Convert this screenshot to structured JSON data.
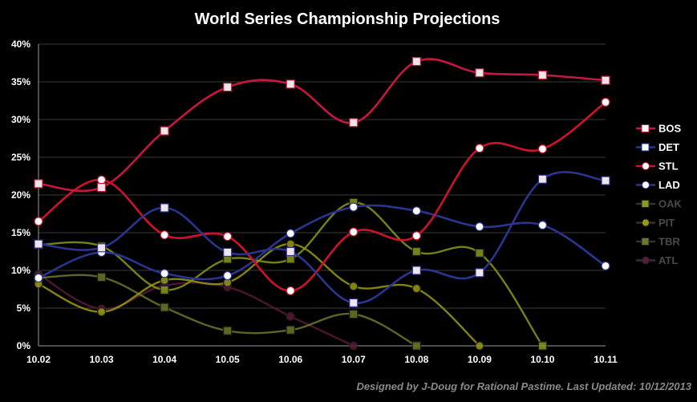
{
  "chart_data": {
    "type": "line",
    "title": "World Series Championship Projections",
    "x": [
      "10.02",
      "10.03",
      "10.04",
      "10.05",
      "10.06",
      "10.07",
      "10.08",
      "10.09",
      "10.10",
      "10.11"
    ],
    "y_ticks": [
      "0%",
      "5%",
      "10%",
      "15%",
      "20%",
      "25%",
      "30%",
      "35%",
      "40%"
    ],
    "ylim": [
      0,
      40
    ],
    "grid": true,
    "legend_position": "right",
    "series": [
      {
        "name": "BOS",
        "color": "#c8173f",
        "marker": "square",
        "active": true,
        "values": [
          21.5,
          21.0,
          28.5,
          34.3,
          34.7,
          29.6,
          37.7,
          36.2,
          35.9,
          35.2
        ]
      },
      {
        "name": "DET",
        "color": "#2a3590",
        "marker": "square",
        "active": true,
        "values": [
          13.5,
          13.0,
          18.3,
          12.4,
          12.5,
          5.7,
          10.0,
          9.7,
          22.1,
          21.9
        ]
      },
      {
        "name": "STL",
        "color": "#d0122a",
        "marker": "circle",
        "active": true,
        "values": [
          16.5,
          22.0,
          14.7,
          14.5,
          7.3,
          15.1,
          14.6,
          26.2,
          26.1,
          32.3
        ]
      },
      {
        "name": "LAD",
        "color": "#2a3590",
        "marker": "circle",
        "active": true,
        "values": [
          9.0,
          12.4,
          9.6,
          9.3,
          14.9,
          18.4,
          17.9,
          15.8,
          16.0,
          10.6
        ]
      },
      {
        "name": "OAK",
        "color": "#8a9a1a",
        "marker": "square",
        "active": false,
        "values": [
          13.4,
          13.2,
          7.4,
          11.5,
          11.5,
          19.0,
          12.5,
          12.3,
          0.0,
          null
        ]
      },
      {
        "name": "PIT",
        "color": "#9a9a12",
        "marker": "circle",
        "active": false,
        "values": [
          8.2,
          4.5,
          8.7,
          8.4,
          13.5,
          7.9,
          7.6,
          0.0,
          null,
          null
        ]
      },
      {
        "name": "TBR",
        "color": "#6a7a2a",
        "marker": "square",
        "active": false,
        "values": [
          9.0,
          9.1,
          5.1,
          2.0,
          2.1,
          4.2,
          0.0,
          null,
          null,
          null
        ]
      },
      {
        "name": "ATL",
        "color": "#5a1a3a",
        "marker": "circle",
        "active": false,
        "values": [
          9.5,
          4.9,
          8.0,
          7.8,
          3.9,
          0.0,
          null,
          null,
          null,
          null
        ]
      }
    ]
  },
  "footer": "Designed by J-Doug for Rational Pastime. Last Updated: 10/12/2013"
}
